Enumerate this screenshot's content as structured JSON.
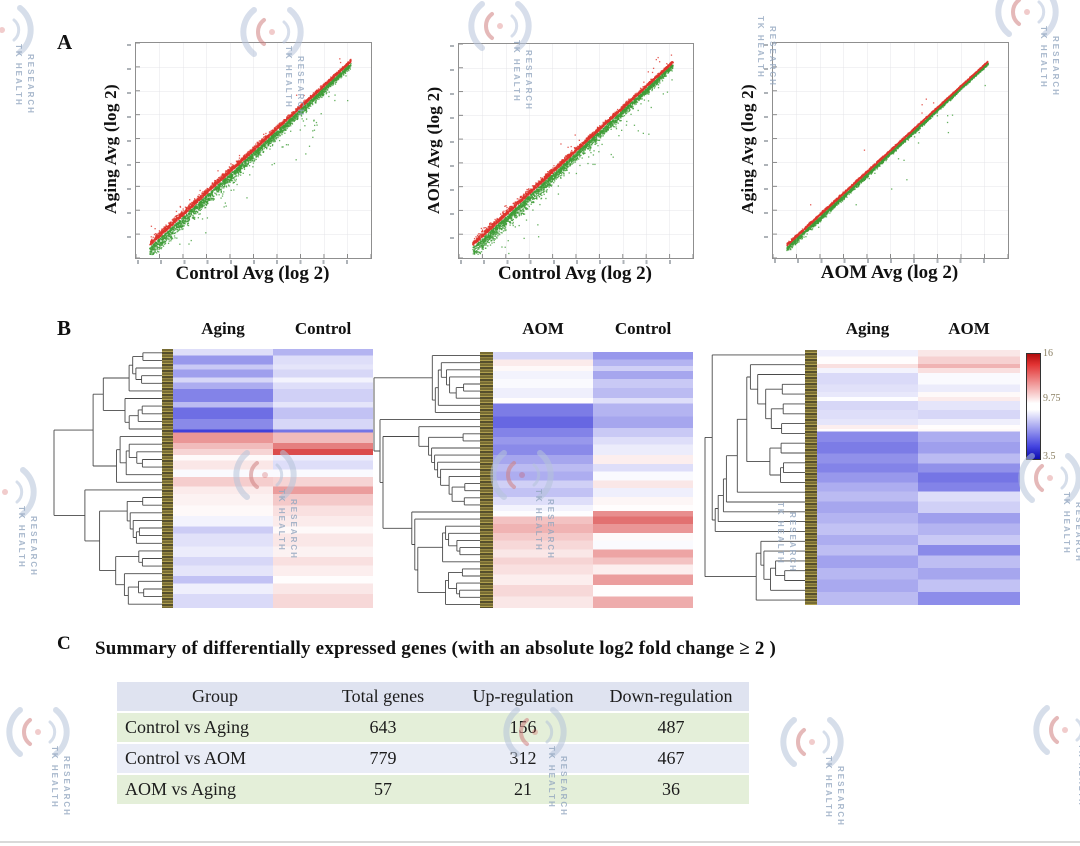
{
  "watermark": {
    "line1": "TK HEALTH",
    "line2": "RESEARCH"
  },
  "panels": {
    "a": "A",
    "b": "B",
    "c": "C"
  },
  "colorbar": {
    "labels": [
      "16",
      "9.75",
      "3.5"
    ],
    "top_color": "#b00d0d",
    "mid_color": "#ffffff",
    "bottom_color": "#0d0dae"
  },
  "chart_data": [
    {
      "id": "scatter-aging-vs-control",
      "type": "scatter",
      "xlabel": "Control Avg (log 2)",
      "ylabel": "Aging Avg (log 2)",
      "xlim": [
        2,
        18
      ],
      "ylim": [
        2,
        18
      ],
      "grid": true,
      "tick_labels_legible": false,
      "series": [
        {
          "name": "up-regulated",
          "color": "#dd342c",
          "relation": "above diagonal"
        },
        {
          "name": "down-regulated",
          "color": "#3f9c37",
          "relation": "below diagonal"
        }
      ],
      "n_points_per_series": 2600,
      "band_spread": 0.5,
      "outlier_fraction": 0.035,
      "seed": 101
    },
    {
      "id": "scatter-aom-vs-control",
      "type": "scatter",
      "xlabel": "Control Avg (log 2)",
      "ylabel": "AOM Avg (log 2)",
      "xlim": [
        2,
        18
      ],
      "ylim": [
        2,
        18
      ],
      "grid": true,
      "tick_labels_legible": false,
      "series": [
        {
          "name": "up-regulated",
          "color": "#dd342c",
          "relation": "above diagonal"
        },
        {
          "name": "down-regulated",
          "color": "#3f9c37",
          "relation": "below diagonal"
        }
      ],
      "n_points_per_series": 2600,
      "band_spread": 0.5,
      "outlier_fraction": 0.04,
      "seed": 202
    },
    {
      "id": "scatter-aging-vs-aom",
      "type": "scatter",
      "xlabel": "AOM Avg (log 2)",
      "ylabel": "Aging Avg (log 2)",
      "xlim": [
        2,
        18
      ],
      "ylim": [
        2,
        18
      ],
      "grid": true,
      "tick_labels_legible": false,
      "series": [
        {
          "name": "up-regulated",
          "color": "#dd342c",
          "relation": "above diagonal"
        },
        {
          "name": "down-regulated",
          "color": "#3f9c37",
          "relation": "below diagonal"
        }
      ],
      "n_points_per_series": 2600,
      "band_spread": 0.2,
      "outlier_fraction": 0.006,
      "seed": 303
    },
    {
      "id": "heatmap-aging-control",
      "type": "heatmap",
      "columns": [
        "Aging",
        "Control"
      ],
      "scale_min": 3.5,
      "scale_mid": 9.75,
      "scale_max": 16,
      "n_leaves": 34,
      "seed": 11,
      "rows": [
        [
          0.025,
          8.8,
          7.6
        ],
        [
          0.035,
          6.8,
          8.8
        ],
        [
          0.02,
          8.2,
          9.0
        ],
        [
          0.03,
          7.0,
          8.6
        ],
        [
          0.02,
          8.6,
          9.4
        ],
        [
          0.025,
          7.4,
          8.8
        ],
        [
          0.05,
          6.2,
          8.4
        ],
        [
          0.02,
          7.8,
          9.0
        ],
        [
          0.045,
          5.6,
          8.0
        ],
        [
          0.04,
          6.4,
          8.6
        ],
        [
          0.012,
          4.3,
          5.8
        ],
        [
          0.04,
          12.6,
          11.6
        ],
        [
          0.025,
          11.6,
          13.2
        ],
        [
          0.022,
          10.9,
          14.6
        ],
        [
          0.022,
          9.9,
          9.2
        ],
        [
          0.034,
          10.4,
          8.8
        ],
        [
          0.03,
          9.6,
          9.6
        ],
        [
          0.035,
          11.1,
          10.9
        ],
        [
          0.03,
          10.3,
          12.4
        ],
        [
          0.045,
          10.1,
          11.2
        ],
        [
          0.04,
          9.9,
          10.6
        ],
        [
          0.04,
          9.4,
          10.3
        ],
        [
          0.028,
          8.3,
          9.9
        ],
        [
          0.05,
          8.9,
          10.4
        ],
        [
          0.04,
          9.2,
          10.1
        ],
        [
          0.033,
          8.6,
          10.6
        ],
        [
          0.04,
          9.0,
          10.2
        ],
        [
          0.03,
          8.0,
          9.8
        ],
        [
          0.04,
          9.3,
          10.4
        ],
        [
          0.054,
          8.7,
          10.8
        ]
      ]
    },
    {
      "id": "heatmap-aom-control",
      "type": "heatmap",
      "columns": [
        "AOM",
        "Control"
      ],
      "scale_min": 3.5,
      "scale_mid": 9.75,
      "scale_max": 16,
      "n_leaves": 36,
      "seed": 22,
      "rows": [
        [
          0.03,
          8.6,
          6.8
        ],
        [
          0.025,
          10.3,
          7.6
        ],
        [
          0.02,
          9.9,
          8.4
        ],
        [
          0.03,
          9.4,
          7.2
        ],
        [
          0.035,
          9.6,
          8.2
        ],
        [
          0.04,
          9.3,
          7.8
        ],
        [
          0.022,
          9.8,
          8.8
        ],
        [
          0.05,
          6.0,
          7.6
        ],
        [
          0.045,
          5.4,
          7.2
        ],
        [
          0.035,
          6.2,
          8.2
        ],
        [
          0.03,
          6.8,
          8.8
        ],
        [
          0.04,
          6.4,
          9.2
        ],
        [
          0.035,
          7.2,
          10.2
        ],
        [
          0.03,
          7.8,
          8.8
        ],
        [
          0.035,
          7.4,
          9.6
        ],
        [
          0.03,
          8.4,
          10.4
        ],
        [
          0.035,
          8.0,
          9.3
        ],
        [
          0.03,
          8.8,
          10.0
        ],
        [
          0.025,
          9.4,
          9.8
        ],
        [
          0.02,
          9.7,
          12.8
        ],
        [
          0.03,
          11.4,
          13.6
        ],
        [
          0.035,
          11.8,
          12.6
        ],
        [
          0.03,
          11.2,
          9.9
        ],
        [
          0.035,
          10.8,
          9.6
        ],
        [
          0.03,
          10.4,
          12.2
        ],
        [
          0.028,
          10.9,
          11.4
        ],
        [
          0.04,
          10.6,
          10.2
        ],
        [
          0.04,
          10.2,
          12.4
        ],
        [
          0.045,
          10.8,
          9.8
        ],
        [
          0.045,
          10.4,
          12.0
        ]
      ]
    },
    {
      "id": "heatmap-aging-aom",
      "type": "heatmap",
      "columns": [
        "Aging",
        "AOM"
      ],
      "scale_min": 3.5,
      "scale_mid": 9.75,
      "scale_max": 16,
      "n_leaves": 26,
      "seed": 33,
      "rows": [
        [
          0.025,
          9.3,
          10.4
        ],
        [
          0.03,
          9.8,
          11.0
        ],
        [
          0.015,
          10.6,
          11.8
        ],
        [
          0.02,
          9.4,
          10.6
        ],
        [
          0.045,
          8.7,
          9.6
        ],
        [
          0.03,
          8.9,
          9.2
        ],
        [
          0.02,
          9.1,
          9.9
        ],
        [
          0.015,
          9.7,
          10.3
        ],
        [
          0.035,
          8.6,
          9.0
        ],
        [
          0.035,
          8.8,
          8.6
        ],
        [
          0.025,
          9.0,
          9.3
        ],
        [
          0.015,
          10.2,
          9.8
        ],
        [
          0.01,
          9.8,
          9.9
        ],
        [
          0.04,
          6.4,
          7.4
        ],
        [
          0.045,
          6.0,
          7.0
        ],
        [
          0.04,
          6.6,
          7.8
        ],
        [
          0.035,
          6.2,
          6.6
        ],
        [
          0.04,
          6.8,
          5.8
        ],
        [
          0.035,
          7.4,
          6.2
        ],
        [
          0.04,
          7.8,
          8.8
        ],
        [
          0.045,
          7.2,
          8.4
        ],
        [
          0.04,
          7.6,
          7.0
        ],
        [
          0.045,
          8.0,
          7.6
        ],
        [
          0.04,
          7.4,
          8.2
        ],
        [
          0.04,
          7.9,
          6.4
        ],
        [
          0.05,
          7.1,
          7.9
        ],
        [
          0.045,
          7.7,
          7.2
        ],
        [
          0.05,
          7.3,
          8.0
        ],
        [
          0.05,
          7.8,
          6.5
        ]
      ]
    },
    {
      "id": "summary-table",
      "type": "table",
      "title": "Summary of differentially expressed genes (with an absolute log2 fold change ≥ 2 )",
      "headers": [
        "Group",
        "Total genes",
        "Up-regulation",
        "Down-regulation"
      ],
      "rows": [
        [
          "Control vs Aging",
          "643",
          "156",
          "487"
        ],
        [
          "Control vs AOM",
          "779",
          "312",
          "467"
        ],
        [
          "AOM vs Aging",
          "57",
          "21",
          "36"
        ]
      ]
    }
  ]
}
